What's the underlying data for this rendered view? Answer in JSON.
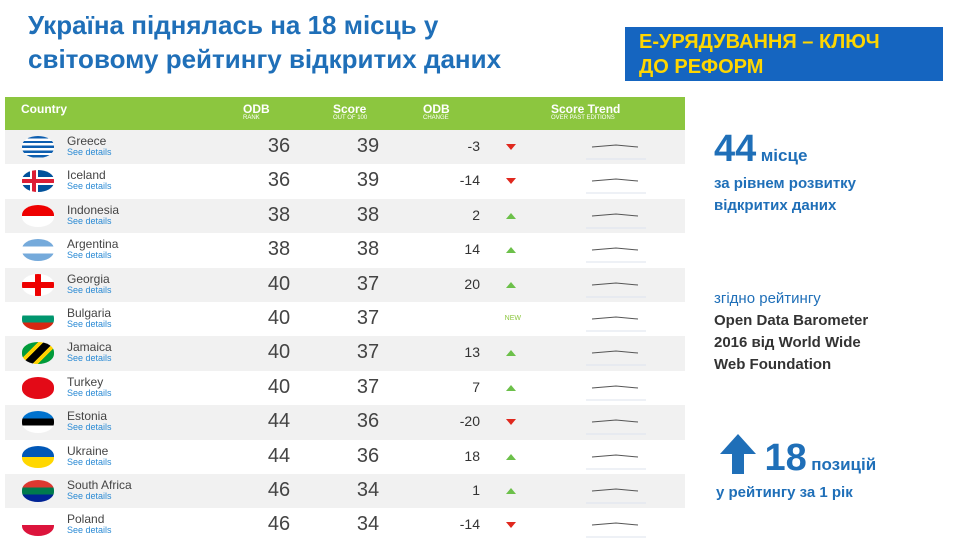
{
  "title": [
    "Україна піднялась на 18 місць у",
    "світовому рейтингу відкритих даних"
  ],
  "banner": [
    "Е-УРЯДУВАННЯ – КЛЮЧ",
    "ДО РЕФОРМ"
  ],
  "table": {
    "headers": [
      {
        "main": "Country"
      },
      {
        "main": "ODB",
        "sub": "RANK"
      },
      {
        "main": "Score",
        "sub": "OUT OF 100"
      },
      {
        "main": "ODB",
        "sub": "CHANGE"
      },
      {
        "main": "Score Trend",
        "sub": "OVER PAST EDITIONS"
      }
    ],
    "details": "See details",
    "rows": [
      {
        "country": "Greece",
        "rank": 36,
        "score": 39,
        "change": -3
      },
      {
        "country": "Iceland",
        "rank": 36,
        "score": 39,
        "change": -14
      },
      {
        "country": "Indonesia",
        "rank": 38,
        "score": 38,
        "change": 2
      },
      {
        "country": "Argentina",
        "rank": 38,
        "score": 38,
        "change": 14
      },
      {
        "country": "Georgia",
        "rank": 40,
        "score": 37,
        "change": 20
      },
      {
        "country": "Bulgaria",
        "rank": 40,
        "score": 37,
        "change": "NEW"
      },
      {
        "country": "Jamaica",
        "rank": 40,
        "score": 37,
        "change": 13
      },
      {
        "country": "Turkey",
        "rank": 40,
        "score": 37,
        "change": 7
      },
      {
        "country": "Estonia",
        "rank": 44,
        "score": 36,
        "change": -20
      },
      {
        "country": "Ukraine",
        "rank": 44,
        "score": 36,
        "change": 18
      },
      {
        "country": "South Africa",
        "rank": 46,
        "score": 34,
        "change": 1
      },
      {
        "country": "Poland",
        "rank": 46,
        "score": 34,
        "change": -14
      }
    ]
  },
  "side": {
    "place": {
      "number": "44",
      "word": "місце",
      "lines": [
        "за рівнем розвитку",
        "відкритих даних"
      ]
    },
    "source": {
      "intro": "згідно рейтингу",
      "lines": [
        "Open Data Barometer",
        "2016 від World Wide",
        "Web Foundation"
      ]
    },
    "rise": {
      "number": "18",
      "word": "позицій",
      "line": "у рейтингу за 1 рік"
    }
  }
}
